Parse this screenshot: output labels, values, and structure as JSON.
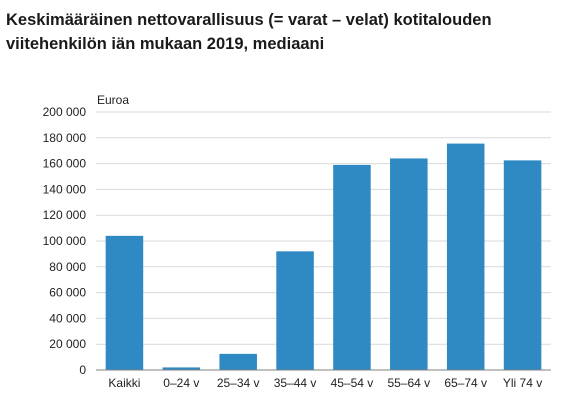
{
  "chart_data": {
    "type": "bar",
    "title_lines": [
      "Keskimääräinen nettovarallisuus (= varat – velat) kotitalouden",
      "viitehenkilön iän mukaan 2019, mediaani"
    ],
    "ylabel": "Euroa",
    "categories": [
      "Kaikki",
      "0–24 v",
      "25–34 v",
      "35–44 v",
      "45–54 v",
      "55–64 v",
      "65–74 v",
      "Yli 74 v"
    ],
    "values": [
      104000,
      2000,
      12500,
      92000,
      159000,
      164000,
      175500,
      162500
    ],
    "ylim": [
      0,
      200000
    ],
    "yticks": [
      0,
      20000,
      40000,
      60000,
      80000,
      100000,
      120000,
      140000,
      160000,
      180000,
      200000
    ],
    "ytick_labels": [
      "0",
      "20 000",
      "40 000",
      "60 000",
      "80 000",
      "100 000",
      "120 000",
      "140 000",
      "160 000",
      "180 000",
      "200 000"
    ],
    "grid": true,
    "bar_color": "#2f8ac4",
    "grid_color": "#d9d9d9",
    "axis_color": "#808080"
  }
}
